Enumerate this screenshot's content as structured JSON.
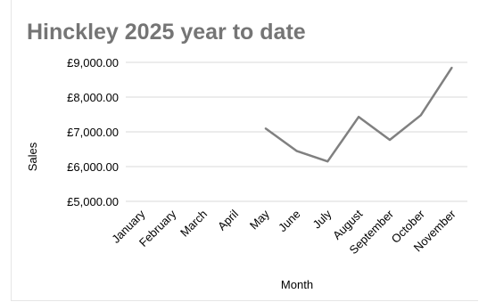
{
  "chart_data": {
    "type": "line",
    "title": "Hinckley 2025 year to date",
    "xlabel": "Month",
    "ylabel": "Sales",
    "categories": [
      "January",
      "February",
      "March",
      "April",
      "May",
      "June",
      "July",
      "August",
      "September",
      "October",
      "November"
    ],
    "series": [
      {
        "values": [
          null,
          null,
          null,
          null,
          7100,
          6450,
          6150,
          7430,
          6770,
          7480,
          8850
        ]
      }
    ],
    "ylim": [
      5000,
      9000
    ],
    "yticks": [
      "£5,000.00",
      "£6,000.00",
      "£7,000.00",
      "£8,000.00",
      "£9,000.00"
    ],
    "ytick_values": [
      5000,
      6000,
      7000,
      8000,
      9000
    ],
    "grid": true,
    "colors": {
      "line": "#808080",
      "grid": "#d9d9d9",
      "title": "#757575"
    }
  }
}
